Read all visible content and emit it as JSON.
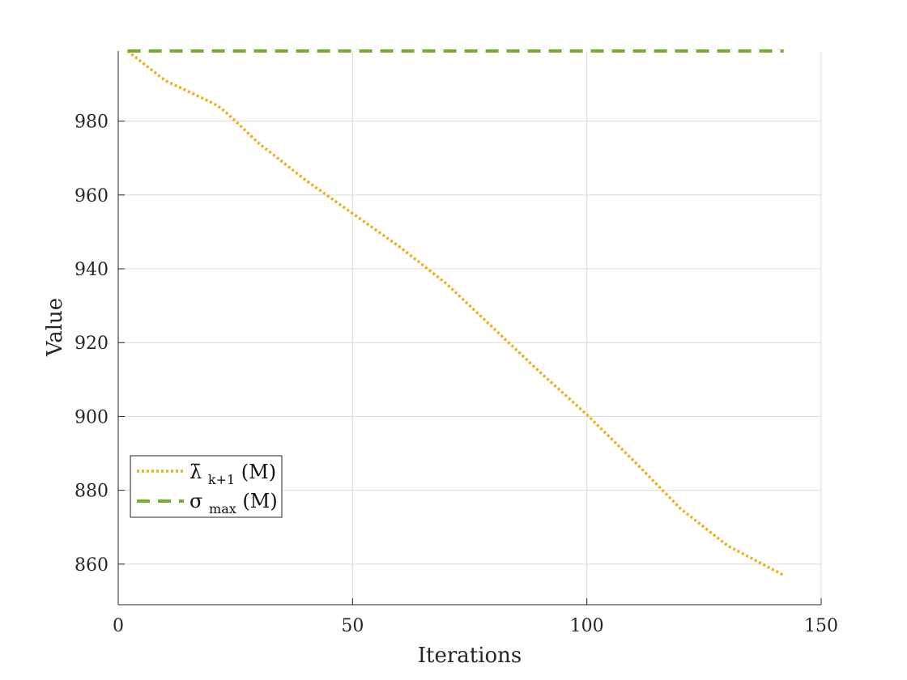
{
  "chart_data": {
    "type": "line",
    "title": "",
    "xlabel": "Iterations",
    "ylabel": "Value",
    "xlim": [
      0,
      150
    ],
    "ylim": [
      849,
      999
    ],
    "xticks": [
      0,
      50,
      100,
      150
    ],
    "yticks": [
      860,
      880,
      900,
      920,
      940,
      960,
      980
    ],
    "grid": true,
    "legend": {
      "placement": "lower-left"
    },
    "series": [
      {
        "name": "λ̄k+1(M)",
        "name_parts": {
          "base": "λ̄",
          "sub": "k+1",
          "tail": "(M)"
        },
        "style": "dotted",
        "color": "#edb120",
        "x": [
          2,
          10,
          20,
          22,
          25,
          30,
          40,
          50,
          60,
          70,
          80,
          90,
          100,
          110,
          120,
          130,
          142
        ],
        "y": [
          999,
          991,
          985,
          983.5,
          980,
          974,
          964,
          955,
          946,
          936,
          924,
          912,
          900.5,
          888,
          875,
          865,
          857
        ]
      },
      {
        "name": "σmax(M)",
        "name_parts": {
          "base": "σ",
          "sub": "max",
          "tail": "(M)"
        },
        "style": "dashed",
        "color": "#77ac30",
        "x": [
          2,
          142
        ],
        "y": [
          999,
          999
        ]
      }
    ]
  }
}
